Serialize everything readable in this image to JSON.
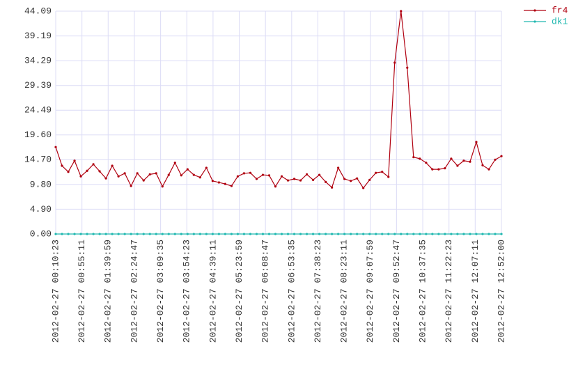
{
  "chart_data": {
    "type": "line",
    "xlim": [
      0,
      71
    ],
    "xticks": [
      {
        "value": 0,
        "label": "2012-02-27 00:10:23"
      },
      {
        "value": 4.18,
        "label": "2012-02-27 00:55:11"
      },
      {
        "value": 8.35,
        "label": "2012-02-27 01:39:59"
      },
      {
        "value": 12.53,
        "label": "2012-02-27 02:24:47"
      },
      {
        "value": 16.71,
        "label": "2012-02-27 03:09:35"
      },
      {
        "value": 20.88,
        "label": "2012-02-27 03:54:23"
      },
      {
        "value": 25.06,
        "label": "2012-02-27 04:39:11"
      },
      {
        "value": 29.24,
        "label": "2012-02-27 05:23:59"
      },
      {
        "value": 33.41,
        "label": "2012-02-27 06:08:47"
      },
      {
        "value": 37.59,
        "label": "2012-02-27 06:53:35"
      },
      {
        "value": 41.76,
        "label": "2012-02-27 07:38:23"
      },
      {
        "value": 45.94,
        "label": "2012-02-27 08:23:11"
      },
      {
        "value": 50.12,
        "label": "2012-02-27 09:07:59"
      },
      {
        "value": 54.29,
        "label": "2012-02-27 09:52:47"
      },
      {
        "value": 58.47,
        "label": "2012-02-27 10:37:35"
      },
      {
        "value": 62.65,
        "label": "2012-02-27 11:22:23"
      },
      {
        "value": 66.82,
        "label": "2012-02-27 12:07:11"
      },
      {
        "value": 71,
        "label": "2012-02-27 12:52:00"
      }
    ],
    "ylim": [
      0,
      44.09
    ],
    "yticks": [
      {
        "value": 0,
        "label": "0.00"
      },
      {
        "value": 4.9,
        "label": "4.90"
      },
      {
        "value": 9.8,
        "label": "9.80"
      },
      {
        "value": 14.7,
        "label": "14.70"
      },
      {
        "value": 19.6,
        "label": "19.60"
      },
      24.49,
      29.39,
      34.29,
      39.19,
      44.09
    ],
    "grid": true,
    "legend": "top-right",
    "series": [
      {
        "name": "fr4",
        "color": "#b00010",
        "values": [
          17.2,
          13.5,
          12.3,
          14.5,
          11.4,
          12.5,
          13.8,
          12.4,
          11.0,
          13.5,
          11.4,
          12.0,
          9.5,
          12.0,
          10.6,
          11.8,
          12.0,
          9.4,
          11.7,
          14.1,
          11.6,
          12.8,
          11.7,
          11.2,
          13.1,
          10.5,
          10.2,
          9.9,
          9.5,
          11.4,
          12.0,
          12.1,
          10.9,
          11.7,
          11.6,
          9.4,
          11.4,
          10.6,
          10.9,
          10.6,
          11.8,
          10.7,
          11.7,
          10.3,
          9.2,
          13.1,
          10.9,
          10.5,
          11.0,
          9.1,
          10.7,
          12.1,
          12.3,
          11.3,
          33.9,
          44.09,
          32.9,
          15.2,
          14.9,
          14.1,
          12.8,
          12.8,
          13.0,
          14.9,
          13.5,
          14.5,
          14.3,
          18.2,
          13.6,
          12.8,
          14.7,
          15.4
        ]
      },
      {
        "name": "dk1",
        "color": "#20b8b0",
        "values": [
          0,
          0,
          0,
          0,
          0,
          0,
          0,
          0,
          0,
          0,
          0,
          0,
          0,
          0,
          0,
          0,
          0,
          0,
          0,
          0,
          0,
          0,
          0,
          0,
          0,
          0,
          0,
          0,
          0,
          0,
          0,
          0,
          0,
          0,
          0,
          0,
          0,
          0,
          0,
          0,
          0,
          0,
          0,
          0,
          0,
          0,
          0,
          0,
          0,
          0,
          0,
          0,
          0,
          0,
          0,
          0,
          0,
          0,
          0,
          0,
          0,
          0,
          0,
          0,
          0,
          0,
          0,
          0,
          0,
          0,
          0,
          0
        ]
      }
    ]
  }
}
